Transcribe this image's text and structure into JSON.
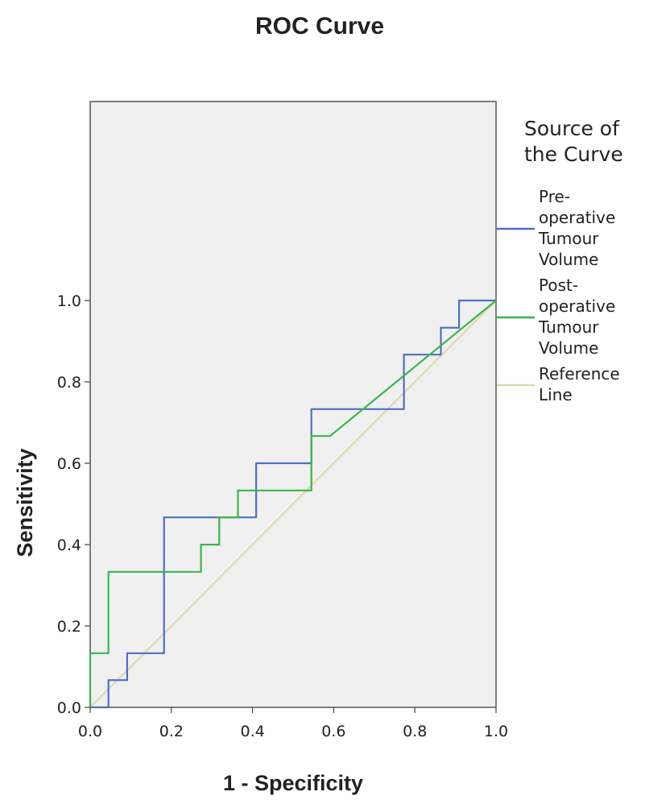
{
  "chart_data": {
    "type": "line",
    "title": "ROC Curve",
    "xlabel": "1 - Specificity",
    "ylabel": "Sensitivity",
    "xlim": [
      0,
      1
    ],
    "ylim": [
      0,
      1
    ],
    "xticks": [
      "0.0",
      "0.2",
      "0.4",
      "0.6",
      "0.8",
      "1.0"
    ],
    "yticks": [
      "0.0",
      "0.2",
      "0.4",
      "0.6",
      "0.8",
      "1.0"
    ],
    "grid": false,
    "legend": {
      "title": "Source of the Curve",
      "placement": "right"
    },
    "series": [
      {
        "name": "Pre-operative Tumour Volume",
        "color": "#4f6fbf",
        "x": [
          0,
          0.045,
          0.045,
          0.091,
          0.091,
          0.182,
          0.182,
          0.409,
          0.409,
          0.545,
          0.545,
          0.773,
          0.773,
          0.864,
          0.864,
          0.909,
          0.909,
          1.0
        ],
        "y": [
          0,
          0,
          0.067,
          0.067,
          0.133,
          0.133,
          0.467,
          0.467,
          0.6,
          0.6,
          0.733,
          0.733,
          0.867,
          0.867,
          0.933,
          0.933,
          1.0,
          1.0
        ]
      },
      {
        "name": "Post-operative Tumour Volume",
        "color": "#3cb44b",
        "x": [
          0,
          0,
          0.045,
          0.045,
          0.273,
          0.273,
          0.318,
          0.318,
          0.364,
          0.364,
          0.545,
          0.545,
          0.591,
          1.0
        ],
        "y": [
          0,
          0.133,
          0.133,
          0.333,
          0.333,
          0.4,
          0.4,
          0.467,
          0.467,
          0.533,
          0.533,
          0.667,
          0.667,
          1.0
        ]
      },
      {
        "name": "Reference Line",
        "color": "#dcd9b0",
        "x": [
          0,
          1
        ],
        "y": [
          0,
          1
        ]
      }
    ]
  }
}
